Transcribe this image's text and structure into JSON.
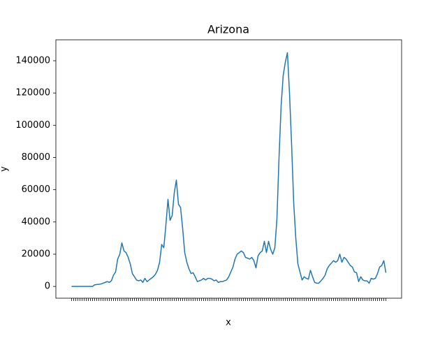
{
  "chart_data": {
    "type": "line",
    "title": "Arizona",
    "x_label": "x",
    "y_label": "y",
    "categories": [
      null,
      null,
      null,
      null,
      null,
      null,
      null,
      null,
      null,
      null,
      null,
      null,
      null,
      null,
      null,
      null,
      null,
      null,
      null,
      null,
      null,
      null,
      null,
      null,
      null,
      null,
      null,
      null,
      null,
      null,
      null,
      null,
      null,
      null,
      null,
      null,
      null,
      null,
      null,
      null,
      null,
      null,
      null,
      null,
      null,
      null,
      null,
      null,
      null,
      null,
      null,
      null,
      null,
      null,
      null,
      null,
      null,
      null,
      null,
      null,
      null,
      null,
      null,
      null,
      null,
      null,
      null,
      null,
      null,
      null,
      null,
      null,
      null,
      null,
      null,
      null,
      null,
      null,
      null,
      null,
      null,
      null,
      null,
      null,
      null,
      null,
      null,
      null,
      null,
      null,
      null,
      null,
      null,
      null,
      null,
      null,
      null,
      null,
      null,
      null,
      null,
      null,
      null,
      null,
      null,
      null,
      null,
      null,
      null,
      null,
      null,
      null,
      null,
      null,
      null,
      null,
      null,
      null,
      null,
      null,
      null,
      null,
      null,
      null,
      null,
      null,
      null,
      null,
      null,
      null,
      null,
      null,
      null,
      null,
      null,
      null,
      null,
      null,
      null,
      null,
      null,
      null,
      null,
      null,
      null,
      null,
      null,
      null,
      null,
      null,
      null
    ],
    "series": [
      {
        "name": "Arizona",
        "color": "#1f77b4",
        "values": [
          0,
          0,
          0,
          0,
          0,
          0,
          0,
          0,
          0,
          0,
          0,
          1000,
          1200,
          1300,
          1500,
          2000,
          2500,
          3000,
          2500,
          3500,
          7000,
          9000,
          17000,
          20000,
          27000,
          22000,
          21000,
          18000,
          14000,
          8000,
          6000,
          4000,
          3500,
          4000,
          2500,
          5000,
          3000,
          4000,
          5000,
          6000,
          7500,
          10000,
          15000,
          26000,
          24000,
          38000,
          54000,
          41000,
          44000,
          58000,
          66000,
          51000,
          49000,
          36000,
          21000,
          15000,
          11000,
          8000,
          8500,
          6000,
          3000,
          3500,
          4000,
          5000,
          4000,
          5000,
          5000,
          4500,
          3500,
          4000,
          2500,
          3000,
          3000,
          3500,
          4000,
          6000,
          9000,
          12000,
          17000,
          20000,
          21000,
          22000,
          21000,
          18000,
          17500,
          17000,
          18000,
          16000,
          11500,
          19000,
          21000,
          22000,
          28000,
          21000,
          28000,
          23000,
          20000,
          24000,
          42000,
          80000,
          112000,
          131000,
          139000,
          145000,
          120000,
          88000,
          52000,
          30000,
          14000,
          9000,
          4000,
          6000,
          5000,
          4500,
          10000,
          6000,
          2500,
          2000,
          2000,
          3500,
          5000,
          7000,
          11000,
          13000,
          14500,
          16000,
          15000,
          16000,
          20000,
          15000,
          18000,
          17000,
          15000,
          13000,
          12000,
          9000,
          8500,
          3000,
          6000,
          4000,
          3500,
          3500,
          2000,
          5000,
          4500,
          5000,
          8000,
          12000,
          13000,
          16000,
          8500
        ]
      }
    ],
    "ylim": [
      -7300,
      153000
    ],
    "yticks": [
      0,
      20000,
      40000,
      60000,
      80000,
      100000,
      120000,
      140000
    ]
  }
}
